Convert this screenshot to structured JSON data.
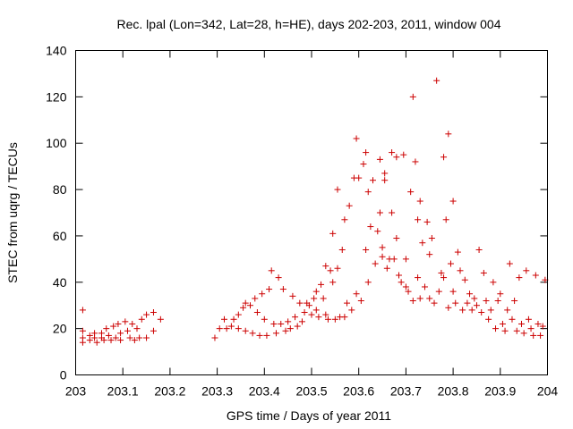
{
  "chart_data": {
    "type": "scatter",
    "title": "Rec. lpal (Lon=342, Lat=28, h=HE), days 202-203, 2011, window 004",
    "xlabel": "GPS time / Days of year 2011",
    "ylabel": "STEC from uqrg / TECUs",
    "xlim": [
      203,
      204
    ],
    "ylim": [
      0,
      140
    ],
    "xticks": [
      "203",
      "203.1",
      "203.2",
      "203.3",
      "203.4",
      "203.5",
      "203.6",
      "203.7",
      "203.8",
      "203.9",
      "204"
    ],
    "yticks": [
      "0",
      "20",
      "40",
      "60",
      "80",
      "100",
      "120",
      "140"
    ],
    "marker": "+",
    "marker_color": "#cc0000",
    "grid": false,
    "points": [
      [
        203.015,
        28
      ],
      [
        203.015,
        19
      ],
      [
        203.015,
        16
      ],
      [
        203.015,
        14
      ],
      [
        203.03,
        17
      ],
      [
        203.03,
        15
      ],
      [
        203.04,
        18
      ],
      [
        203.04,
        16
      ],
      [
        203.045,
        14
      ],
      [
        203.055,
        18
      ],
      [
        203.055,
        16
      ],
      [
        203.06,
        15
      ],
      [
        203.065,
        20
      ],
      [
        203.07,
        17
      ],
      [
        203.075,
        15
      ],
      [
        203.08,
        21
      ],
      [
        203.085,
        16
      ],
      [
        203.09,
        22
      ],
      [
        203.095,
        18
      ],
      [
        203.095,
        15
      ],
      [
        203.105,
        23
      ],
      [
        203.11,
        19
      ],
      [
        203.115,
        16
      ],
      [
        203.12,
        22
      ],
      [
        203.125,
        15
      ],
      [
        203.13,
        20
      ],
      [
        203.135,
        16
      ],
      [
        203.14,
        24
      ],
      [
        203.15,
        26
      ],
      [
        203.15,
        16
      ],
      [
        203.165,
        27
      ],
      [
        203.165,
        19
      ],
      [
        203.18,
        24
      ],
      [
        203.295,
        16
      ],
      [
        203.305,
        20
      ],
      [
        203.315,
        24
      ],
      [
        203.32,
        20
      ],
      [
        203.33,
        21
      ],
      [
        203.335,
        24
      ],
      [
        203.345,
        26
      ],
      [
        203.345,
        20
      ],
      [
        203.355,
        29
      ],
      [
        203.36,
        31
      ],
      [
        203.36,
        19
      ],
      [
        203.37,
        30
      ],
      [
        203.375,
        18
      ],
      [
        203.38,
        33
      ],
      [
        203.385,
        27
      ],
      [
        203.39,
        17
      ],
      [
        203.395,
        35
      ],
      [
        203.4,
        24
      ],
      [
        203.405,
        17
      ],
      [
        203.41,
        37
      ],
      [
        203.415,
        45
      ],
      [
        203.42,
        22
      ],
      [
        203.425,
        18
      ],
      [
        203.43,
        42
      ],
      [
        203.435,
        22
      ],
      [
        203.44,
        37
      ],
      [
        203.445,
        19
      ],
      [
        203.45,
        23
      ],
      [
        203.455,
        20
      ],
      [
        203.46,
        34
      ],
      [
        203.465,
        25
      ],
      [
        203.47,
        21
      ],
      [
        203.475,
        31
      ],
      [
        203.48,
        23
      ],
      [
        203.485,
        27
      ],
      [
        203.49,
        31
      ],
      [
        203.495,
        30
      ],
      [
        203.5,
        26
      ],
      [
        203.505,
        33
      ],
      [
        203.51,
        36
      ],
      [
        203.51,
        28
      ],
      [
        203.515,
        25
      ],
      [
        203.52,
        39
      ],
      [
        203.525,
        33
      ],
      [
        203.53,
        47
      ],
      [
        203.53,
        26
      ],
      [
        203.535,
        24
      ],
      [
        203.54,
        45
      ],
      [
        203.545,
        40
      ],
      [
        203.545,
        61
      ],
      [
        203.55,
        24
      ],
      [
        203.555,
        80
      ],
      [
        203.555,
        46
      ],
      [
        203.56,
        25
      ],
      [
        203.565,
        54
      ],
      [
        203.57,
        67
      ],
      [
        203.57,
        25
      ],
      [
        203.575,
        31
      ],
      [
        203.58,
        73
      ],
      [
        203.585,
        28
      ],
      [
        203.59,
        85
      ],
      [
        203.595,
        102
      ],
      [
        203.595,
        35
      ],
      [
        203.6,
        85
      ],
      [
        203.605,
        32
      ],
      [
        203.61,
        91
      ],
      [
        203.615,
        96
      ],
      [
        203.615,
        54
      ],
      [
        203.62,
        79
      ],
      [
        203.62,
        40
      ],
      [
        203.625,
        64
      ],
      [
        203.63,
        84
      ],
      [
        203.635,
        48
      ],
      [
        203.64,
        62
      ],
      [
        203.645,
        93
      ],
      [
        203.645,
        70
      ],
      [
        203.65,
        51
      ],
      [
        203.65,
        55
      ],
      [
        203.655,
        87
      ],
      [
        203.655,
        84
      ],
      [
        203.66,
        46
      ],
      [
        203.665,
        50
      ],
      [
        203.67,
        96
      ],
      [
        203.67,
        70
      ],
      [
        203.675,
        50
      ],
      [
        203.68,
        94
      ],
      [
        203.68,
        59
      ],
      [
        203.685,
        43
      ],
      [
        203.69,
        40
      ],
      [
        203.695,
        95
      ],
      [
        203.7,
        50
      ],
      [
        203.7,
        38
      ],
      [
        203.705,
        36
      ],
      [
        203.71,
        79
      ],
      [
        203.715,
        120
      ],
      [
        203.715,
        32
      ],
      [
        203.72,
        92
      ],
      [
        203.725,
        67
      ],
      [
        203.725,
        42
      ],
      [
        203.73,
        75
      ],
      [
        203.73,
        33
      ],
      [
        203.735,
        57
      ],
      [
        203.74,
        38
      ],
      [
        203.745,
        66
      ],
      [
        203.75,
        52
      ],
      [
        203.75,
        33
      ],
      [
        203.755,
        59
      ],
      [
        203.76,
        31
      ],
      [
        203.765,
        127
      ],
      [
        203.77,
        36
      ],
      [
        203.775,
        44
      ],
      [
        203.78,
        94
      ],
      [
        203.78,
        42
      ],
      [
        203.785,
        67
      ],
      [
        203.79,
        104
      ],
      [
        203.79,
        29
      ],
      [
        203.795,
        48
      ],
      [
        203.8,
        75
      ],
      [
        203.8,
        36
      ],
      [
        203.805,
        31
      ],
      [
        203.81,
        53
      ],
      [
        203.815,
        45
      ],
      [
        203.82,
        28
      ],
      [
        203.825,
        41
      ],
      [
        203.83,
        31
      ],
      [
        203.835,
        35
      ],
      [
        203.84,
        28
      ],
      [
        203.845,
        33
      ],
      [
        203.85,
        30
      ],
      [
        203.855,
        54
      ],
      [
        203.86,
        27
      ],
      [
        203.865,
        44
      ],
      [
        203.87,
        32
      ],
      [
        203.875,
        24
      ],
      [
        203.88,
        28
      ],
      [
        203.885,
        40
      ],
      [
        203.89,
        20
      ],
      [
        203.895,
        32
      ],
      [
        203.9,
        35
      ],
      [
        203.905,
        22
      ],
      [
        203.91,
        19
      ],
      [
        203.915,
        28
      ],
      [
        203.92,
        48
      ],
      [
        203.925,
        24
      ],
      [
        203.93,
        32
      ],
      [
        203.935,
        19
      ],
      [
        203.94,
        42
      ],
      [
        203.945,
        22
      ],
      [
        203.95,
        18
      ],
      [
        203.955,
        45
      ],
      [
        203.96,
        24
      ],
      [
        203.965,
        20
      ],
      [
        203.97,
        17
      ],
      [
        203.975,
        43
      ],
      [
        203.98,
        22
      ],
      [
        203.985,
        17
      ],
      [
        203.99,
        21
      ],
      [
        203.995,
        41
      ]
    ]
  }
}
